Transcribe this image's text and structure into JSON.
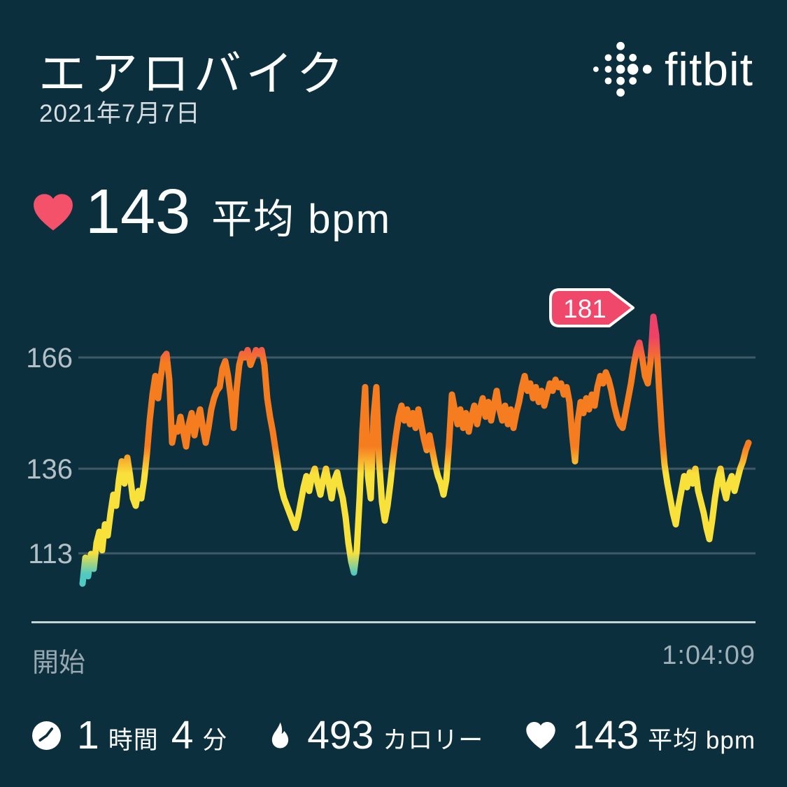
{
  "header": {
    "title": "エアロバイク",
    "date": "2021年7月7日"
  },
  "brand": {
    "logo_text": "fitbit"
  },
  "summary": {
    "value": "143",
    "unit": "平均 bpm"
  },
  "chart_data": {
    "type": "line",
    "y_ticks": [
      "166",
      "136",
      "113"
    ],
    "y_tick_values": [
      166,
      136,
      113
    ],
    "ylim": [
      100,
      185
    ],
    "max_badge": "181",
    "x_range_minutes": [
      0,
      64
    ],
    "grid": "horizontal-only",
    "zone_colors": {
      "peak": "#ee4168",
      "cardio": "#f67c20",
      "fat_burn": "#f9e13b",
      "below": "#4fc9c2"
    },
    "bpm_series": [
      105,
      112,
      107,
      113,
      109,
      116,
      119,
      114,
      121,
      118,
      124,
      129,
      126,
      133,
      138,
      132,
      139,
      134,
      128,
      126,
      130,
      128,
      133,
      140,
      149,
      156,
      161,
      155,
      161,
      166,
      167,
      160,
      143,
      147,
      146,
      150,
      146,
      142,
      148,
      151,
      145,
      149,
      152,
      147,
      143,
      147,
      152,
      155,
      157,
      158,
      163,
      165,
      161,
      155,
      147,
      157,
      164,
      167,
      166,
      168,
      164,
      166,
      168,
      167,
      168,
      164,
      155,
      150,
      146,
      141,
      136,
      131,
      128,
      126,
      124,
      122,
      120,
      123,
      127,
      131,
      134,
      130,
      134,
      136,
      132,
      129,
      133,
      136,
      132,
      128,
      133,
      135,
      131,
      128,
      123,
      116,
      111,
      108,
      114,
      128,
      146,
      158,
      134,
      128,
      150,
      158,
      138,
      127,
      122,
      126,
      132,
      139,
      145,
      150,
      153,
      149,
      152,
      148,
      151,
      147,
      152,
      148,
      144,
      141,
      145,
      141,
      137,
      134,
      132,
      129,
      133,
      143,
      156,
      152,
      148,
      152,
      147,
      151,
      146,
      150,
      153,
      148,
      152,
      155,
      150,
      154,
      149,
      153,
      157,
      152,
      149,
      153,
      148,
      152,
      147,
      151,
      154,
      158,
      161,
      157,
      159,
      155,
      158,
      154,
      157,
      153,
      156,
      159,
      157,
      160,
      158,
      159,
      156,
      158,
      154,
      145,
      138,
      149,
      154,
      151,
      155,
      152,
      156,
      153,
      158,
      161,
      159,
      162,
      160,
      157,
      153,
      150,
      148,
      147,
      151,
      155,
      159,
      164,
      168,
      170,
      166,
      161,
      159,
      165,
      177,
      172,
      158,
      146,
      137,
      132,
      128,
      124,
      121,
      126,
      130,
      134,
      131,
      135,
      132,
      136,
      130,
      127,
      124,
      120,
      117,
      122,
      128,
      133,
      136,
      131,
      128,
      132,
      134,
      130,
      133,
      136,
      138,
      141,
      143
    ]
  },
  "footer": {
    "start_label": "開始",
    "duration": "1:04:09"
  },
  "stats": [
    {
      "icon": "clock-icon",
      "value": "1",
      "unit": "時間",
      "value2": "4",
      "unit2": "分"
    },
    {
      "icon": "flame-icon",
      "value": "493",
      "unit": "カロリー"
    },
    {
      "icon": "heart-icon",
      "value": "143",
      "unit": "平均 bpm"
    }
  ],
  "colors": {
    "background": "#0c2f3e",
    "heart_accent": "#f4516b",
    "badge_fill": "#f0486a",
    "gridline": "#3f5a66",
    "divider": "#dfe9ec",
    "muted_text": "#97a8b0",
    "tick_text": "#b3c0c6"
  }
}
